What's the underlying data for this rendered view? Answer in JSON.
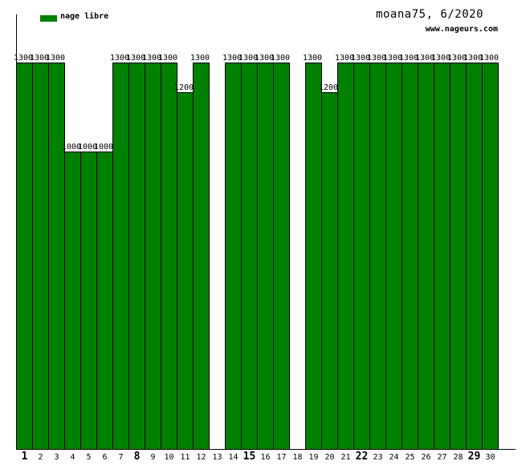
{
  "header": {
    "title": "moana75, 6/2020",
    "website": "www.nageurs.com"
  },
  "legend": {
    "label": "nage libre",
    "color": "#008000"
  },
  "chart_data": {
    "type": "bar",
    "title": "moana75, 6/2020",
    "watermark": "www.nageurs.com",
    "xlabel": "",
    "ylabel": "",
    "categories": [
      1,
      2,
      3,
      4,
      5,
      6,
      7,
      8,
      9,
      10,
      11,
      12,
      13,
      14,
      15,
      16,
      17,
      18,
      19,
      20,
      21,
      22,
      23,
      24,
      25,
      26,
      27,
      28,
      29,
      30
    ],
    "bold_categories": [
      1,
      8,
      15,
      22,
      29
    ],
    "series": [
      {
        "name": "nage libre",
        "color": "#008000",
        "values": [
          1300,
          1300,
          1300,
          1000,
          1000,
          1000,
          1300,
          1300,
          1300,
          1300,
          1200,
          1300,
          null,
          1300,
          1300,
          1300,
          1300,
          null,
          1300,
          1200,
          1300,
          1300,
          1300,
          1300,
          1300,
          1300,
          1300,
          1300,
          1300,
          1300
        ]
      }
    ],
    "value_labels_shown": true,
    "bar_border_color": "#000000",
    "ylim": [
      0,
      1460
    ],
    "grid": false,
    "legend_position": "top-left"
  }
}
